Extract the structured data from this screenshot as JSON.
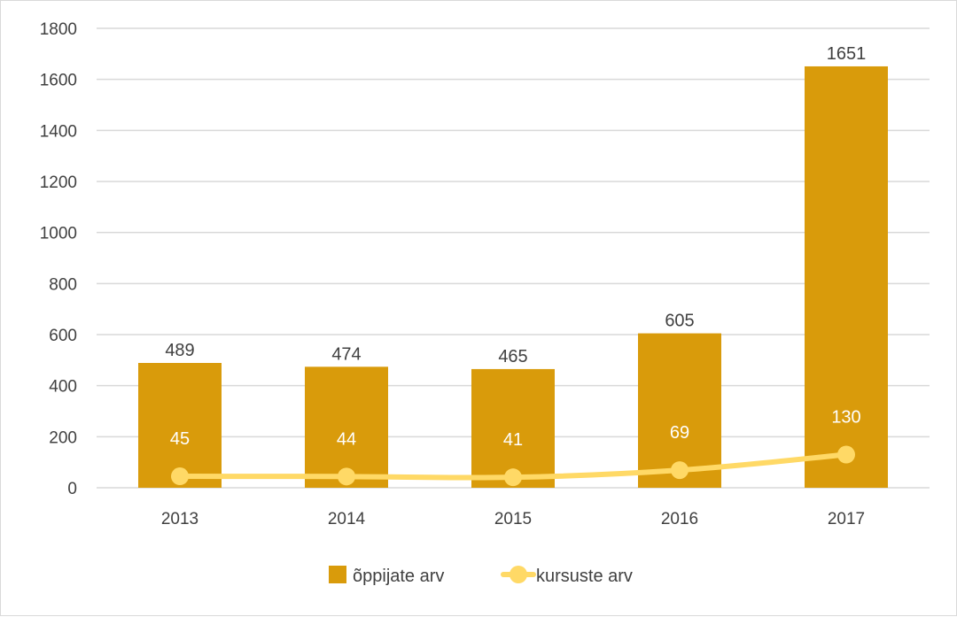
{
  "chart_data": {
    "type": "bar",
    "categories": [
      "2013",
      "2014",
      "2015",
      "2016",
      "2017"
    ],
    "ylim": [
      0,
      1800
    ],
    "yticks": [
      0,
      200,
      400,
      600,
      800,
      1000,
      1200,
      1400,
      1600,
      1800
    ],
    "grid": true,
    "legend_position": "bottom",
    "series": [
      {
        "name": "õppijate arv",
        "kind": "bar",
        "color": "#d99b0b",
        "values": [
          489,
          474,
          465,
          605,
          1651
        ]
      },
      {
        "name": "kursuste arv",
        "kind": "line",
        "color": "#ffd966",
        "values": [
          45,
          44,
          41,
          69,
          130
        ]
      }
    ]
  }
}
